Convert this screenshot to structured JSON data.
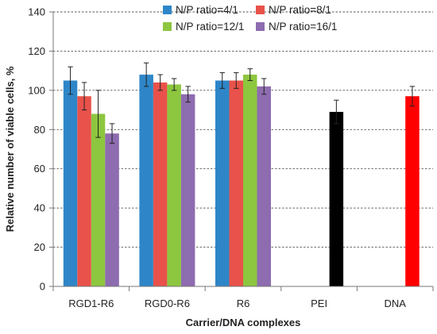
{
  "chart_data": {
    "type": "bar",
    "title": "",
    "xlabel": "Carrier/DNA complexes",
    "ylabel": "Relative number of viable cells, %",
    "ylim": [
      0,
      140
    ],
    "yticks": [
      "0",
      "20",
      "40",
      "60",
      "80",
      "100",
      "120",
      "140"
    ],
    "grid": "horizontal dashed",
    "legend_position": "top",
    "categories": [
      "RGD1-R6",
      "RGD0-R6",
      "R6",
      "PEI",
      "DNA"
    ],
    "series": [
      {
        "name": "N/P ratio=4/1",
        "color": "#2e86c8",
        "values": [
          105,
          108,
          105,
          null,
          null
        ],
        "errors": [
          7,
          6,
          4,
          null,
          null
        ]
      },
      {
        "name": "N/P ratio=8/1",
        "color": "#e8524a",
        "values": [
          97,
          104,
          105,
          null,
          null
        ],
        "errors": [
          7,
          4,
          4,
          null,
          null
        ]
      },
      {
        "name": "N/P ratio=12/1",
        "color": "#8dc63f",
        "values": [
          88,
          103,
          108,
          null,
          null
        ],
        "errors": [
          12,
          3,
          3,
          null,
          null
        ]
      },
      {
        "name": "N/P ratio=16/1",
        "color": "#8e6cb0",
        "values": [
          78,
          98,
          102,
          null,
          null
        ],
        "errors": [
          5,
          4,
          4,
          null,
          null
        ]
      }
    ],
    "single_bars": [
      {
        "category": "PEI",
        "value": 89,
        "error": 6,
        "color": "#000000"
      },
      {
        "category": "DNA",
        "value": 97,
        "error": 5,
        "color": "#ff0000"
      }
    ]
  }
}
